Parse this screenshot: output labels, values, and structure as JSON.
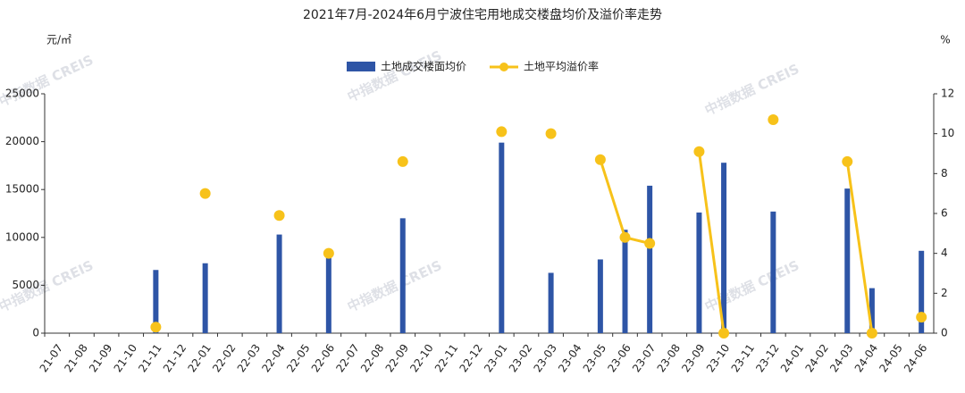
{
  "chart_data": {
    "type": "bar-line",
    "title": "2021年7月-2024年6月宁波住宅用地成交楼盘均价及溢价率走势",
    "y_unit": "元/㎡",
    "y2_unit": "%",
    "watermark": "中指数据 CREIS",
    "categories": [
      "21-07",
      "21-08",
      "21-09",
      "21-10",
      "21-11",
      "21-12",
      "22-01",
      "22-02",
      "22-03",
      "22-04",
      "22-05",
      "22-06",
      "22-07",
      "22-08",
      "22-09",
      "22-10",
      "22-11",
      "22-12",
      "23-01",
      "23-02",
      "23-03",
      "23-04",
      "23-05",
      "23-06",
      "23-07",
      "23-08",
      "23-09",
      "23-10",
      "23-11",
      "23-12",
      "24-01",
      "24-02",
      "24-03",
      "24-04",
      "24-05",
      "24-06"
    ],
    "series": [
      {
        "name": "土地成交楼面均价",
        "type": "bar",
        "color": "#2e55a6",
        "values": [
          null,
          null,
          null,
          null,
          6600,
          null,
          7300,
          null,
          null,
          10300,
          null,
          8000,
          null,
          null,
          12000,
          null,
          null,
          null,
          19900,
          null,
          6300,
          null,
          7700,
          10800,
          15400,
          null,
          12600,
          17800,
          null,
          12700,
          null,
          null,
          15100,
          4700,
          null,
          8600
        ]
      },
      {
        "name": "土地平均溢价率",
        "type": "line",
        "axis": "y2",
        "color": "#f7c21a",
        "values": [
          null,
          null,
          null,
          null,
          0.3,
          null,
          7.0,
          null,
          null,
          5.9,
          null,
          4.0,
          null,
          null,
          8.6,
          null,
          null,
          null,
          10.1,
          null,
          10.0,
          null,
          8.7,
          4.8,
          4.5,
          null,
          9.1,
          0,
          null,
          10.7,
          null,
          null,
          8.6,
          0,
          null,
          0.8
        ]
      }
    ],
    "ylim": [
      0,
      25000
    ],
    "yticks": [
      0,
      5000,
      10000,
      15000,
      20000,
      25000
    ],
    "y2lim": [
      0,
      12
    ],
    "y2ticks": [
      0,
      2,
      4,
      6,
      8,
      10,
      12
    ],
    "legend": "top"
  }
}
